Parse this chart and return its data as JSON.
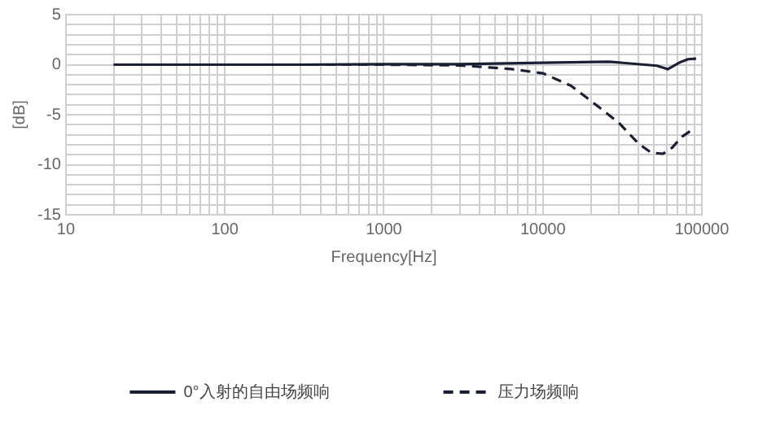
{
  "chart_data": {
    "type": "line",
    "xlabel": "Frequency[Hz]",
    "ylabel": "[dB]",
    "log": "x",
    "xlim": [
      10,
      100000
    ],
    "ylim": [
      -15,
      5
    ],
    "xticks": [
      10,
      {
        "value": 20,
        "label": null
      },
      {
        "value": 30,
        "label": null
      },
      {
        "value": 40,
        "label": null
      },
      {
        "value": 50,
        "label": null
      },
      {
        "value": 60,
        "label": null
      },
      {
        "value": 70,
        "label": null
      },
      {
        "value": 80,
        "label": null
      },
      {
        "value": 90,
        "label": null
      },
      100,
      {
        "value": 200,
        "label": null
      },
      {
        "value": 300,
        "label": null
      },
      {
        "value": 400,
        "label": null
      },
      {
        "value": 500,
        "label": null
      },
      {
        "value": 600,
        "label": null
      },
      {
        "value": 700,
        "label": null
      },
      {
        "value": 800,
        "label": null
      },
      {
        "value": 900,
        "label": null
      },
      1000,
      {
        "value": 2000,
        "label": null
      },
      {
        "value": 3000,
        "label": null
      },
      {
        "value": 4000,
        "label": null
      },
      {
        "value": 5000,
        "label": null
      },
      {
        "value": 6000,
        "label": null
      },
      {
        "value": 7000,
        "label": null
      },
      {
        "value": 8000,
        "label": null
      },
      {
        "value": 9000,
        "label": null
      },
      10000,
      {
        "value": 20000,
        "label": null
      },
      {
        "value": 30000,
        "label": null
      },
      {
        "value": 40000,
        "label": null
      },
      {
        "value": 50000,
        "label": null
      },
      {
        "value": 60000,
        "label": null
      },
      {
        "value": 70000,
        "label": null
      },
      {
        "value": 80000,
        "label": null
      },
      {
        "value": 90000,
        "label": null
      },
      100000
    ],
    "yticks": [
      -15,
      {
        "value": -14,
        "label": null
      },
      {
        "value": -13,
        "label": null
      },
      {
        "value": -12,
        "label": null
      },
      {
        "value": -11,
        "label": null
      },
      -10,
      {
        "value": -9,
        "label": null
      },
      {
        "value": -8,
        "label": null
      },
      {
        "value": -7,
        "label": null
      },
      {
        "value": -6,
        "label": null
      },
      -5,
      {
        "value": -4,
        "label": null
      },
      {
        "value": -3,
        "label": null
      },
      {
        "value": -2,
        "label": null
      },
      {
        "value": -1,
        "label": null
      },
      0,
      {
        "value": 1,
        "label": null
      },
      {
        "value": 2,
        "label": null
      },
      {
        "value": 3,
        "label": null
      },
      {
        "value": 4,
        "label": null
      },
      5
    ],
    "grid": true,
    "legend": "bottom",
    "marker": "none",
    "series": [
      {
        "name": "0°入射的自由场频响",
        "color": "#1a1f33",
        "line_style": "solid",
        "x": [
          20,
          100,
          300,
          1000,
          3000,
          10000,
          26000,
          52000,
          61000,
          72000,
          82000,
          92000
        ],
        "values": [
          0,
          0,
          0,
          0.05,
          0.05,
          0.2,
          0.3,
          -0.1,
          -0.45,
          0.2,
          0.55,
          0.6
        ]
      },
      {
        "name": "压力场频响",
        "color": "#1a1f33",
        "line_style": "dashed",
        "x": [
          20,
          1000,
          3000,
          6300,
          10000,
          15000,
          20000,
          30000,
          40000,
          48000,
          57000,
          65000,
          75000,
          87000
        ],
        "values": [
          0,
          0,
          -0.07,
          -0.43,
          -0.86,
          -2.1,
          -3.6,
          -5.8,
          -7.9,
          -8.8,
          -8.9,
          -8.3,
          -7.2,
          -6.5
        ]
      }
    ]
  }
}
